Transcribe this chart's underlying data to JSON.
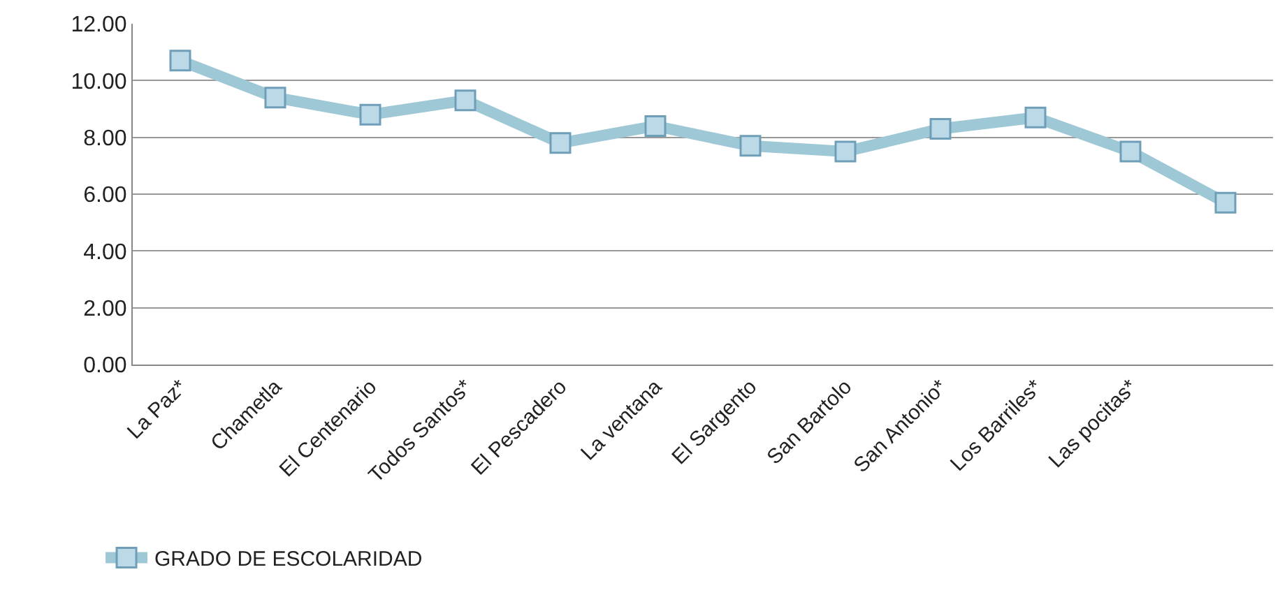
{
  "chart_data": {
    "type": "line",
    "categories": [
      "La Paz*",
      "Chametla",
      "El Centenario",
      "Todos Santos*",
      "El Pescadero",
      "La ventana",
      "El Sargento",
      "San Bartolo",
      "San Antonio*",
      "Los Barriles*",
      "Las pocitas*",
      null
    ],
    "series": [
      {
        "name": "GRADO DE ESCOLARIDAD",
        "color": "#9fc8d6",
        "values": [
          10.7,
          9.4,
          8.8,
          9.3,
          7.8,
          8.4,
          7.7,
          7.5,
          8.3,
          8.7,
          7.5,
          5.7
        ]
      }
    ],
    "ylim": [
      0,
      12
    ],
    "yticks": [
      {
        "value": 0,
        "label": "0.00"
      },
      {
        "value": 2,
        "label": "2.00"
      },
      {
        "value": 4,
        "label": "4.00"
      },
      {
        "value": 6,
        "label": "6.00"
      },
      {
        "value": 8,
        "label": "8.00"
      },
      {
        "value": 10,
        "label": "10.00"
      },
      {
        "value": 12,
        "label": "12.00"
      }
    ],
    "grid": "y",
    "legend": "bottom left",
    "marker": "square",
    "line_style": "solid"
  }
}
